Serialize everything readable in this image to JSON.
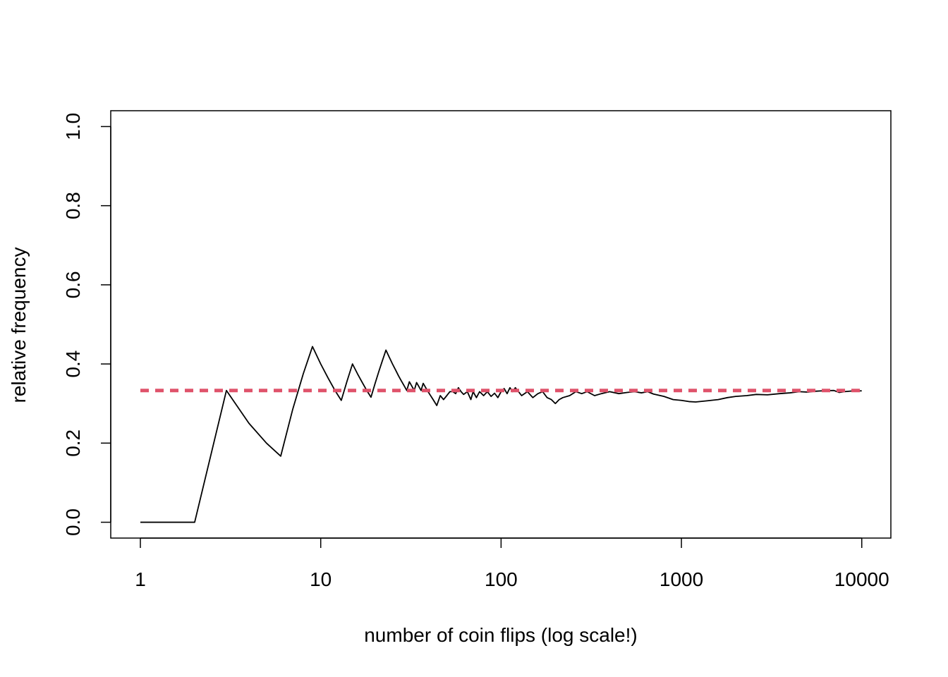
{
  "chart_data": {
    "type": "line",
    "title": "",
    "xlabel": "number of coin flips (log scale!)",
    "ylabel": "relative frequency",
    "x_scale": "log",
    "xlim": [
      0.685,
      14500
    ],
    "ylim": [
      -0.04,
      1.04
    ],
    "x_ticks": [
      1,
      10,
      100,
      1000,
      10000
    ],
    "x_tick_labels": [
      "1",
      "10",
      "100",
      "1000",
      "10000"
    ],
    "y_ticks": [
      0.0,
      0.2,
      0.4,
      0.6,
      0.8,
      1.0
    ],
    "y_tick_labels": [
      "0.0",
      "0.2",
      "0.4",
      "0.6",
      "0.8",
      "1.0"
    ],
    "grid": false,
    "legend": "none",
    "colors": {
      "series": "#000000",
      "reference": "#DF536B"
    },
    "series": [
      {
        "style": "solid",
        "x": [
          1,
          2,
          3,
          4,
          5,
          6,
          7,
          8,
          9,
          10,
          11,
          12,
          13,
          14,
          15,
          16,
          17,
          18,
          19,
          20,
          21,
          22,
          23,
          24,
          25,
          26,
          27,
          28,
          29,
          30,
          31,
          32,
          33,
          34,
          35,
          36,
          37,
          38,
          39,
          40,
          42,
          44,
          46,
          48,
          50,
          52,
          54,
          56,
          58,
          60,
          62,
          65,
          68,
          70,
          73,
          76,
          80,
          84,
          88,
          92,
          96,
          100,
          104,
          108,
          112,
          116,
          120,
          125,
          130,
          140,
          150,
          160,
          170,
          180,
          190,
          200,
          210,
          220,
          240,
          260,
          280,
          300,
          330,
          360,
          400,
          450,
          500,
          550,
          600,
          650,
          700,
          800,
          900,
          1000,
          1100,
          1200,
          1400,
          1600,
          1800,
          2000,
          2300,
          2600,
          3000,
          3500,
          4000,
          4500,
          5000,
          5500,
          6000,
          7000,
          7500,
          8000,
          9000,
          10000
        ],
        "values": [
          0.0,
          0.0,
          0.333,
          0.25,
          0.2,
          0.167,
          0.286,
          0.375,
          0.444,
          0.4,
          0.364,
          0.333,
          0.308,
          0.357,
          0.4,
          0.375,
          0.353,
          0.333,
          0.316,
          0.35,
          0.381,
          0.409,
          0.435,
          0.417,
          0.4,
          0.385,
          0.37,
          0.357,
          0.345,
          0.333,
          0.355,
          0.344,
          0.333,
          0.353,
          0.343,
          0.333,
          0.351,
          0.342,
          0.333,
          0.325,
          0.31,
          0.295,
          0.32,
          0.31,
          0.32,
          0.33,
          0.33,
          0.325,
          0.34,
          0.33,
          0.323,
          0.33,
          0.31,
          0.33,
          0.315,
          0.33,
          0.32,
          0.33,
          0.318,
          0.326,
          0.315,
          0.33,
          0.338,
          0.325,
          0.34,
          0.33,
          0.34,
          0.33,
          0.32,
          0.33,
          0.315,
          0.325,
          0.33,
          0.315,
          0.31,
          0.3,
          0.31,
          0.315,
          0.32,
          0.33,
          0.325,
          0.33,
          0.32,
          0.325,
          0.33,
          0.325,
          0.328,
          0.33,
          0.327,
          0.33,
          0.324,
          0.318,
          0.31,
          0.308,
          0.305,
          0.304,
          0.307,
          0.31,
          0.315,
          0.318,
          0.32,
          0.323,
          0.322,
          0.325,
          0.327,
          0.33,
          0.329,
          0.331,
          0.332,
          0.333,
          0.328,
          0.33,
          0.332,
          0.332
        ]
      },
      {
        "style": "dashed",
        "x": [
          1,
          10000
        ],
        "values": [
          0.333,
          0.333
        ]
      }
    ]
  }
}
